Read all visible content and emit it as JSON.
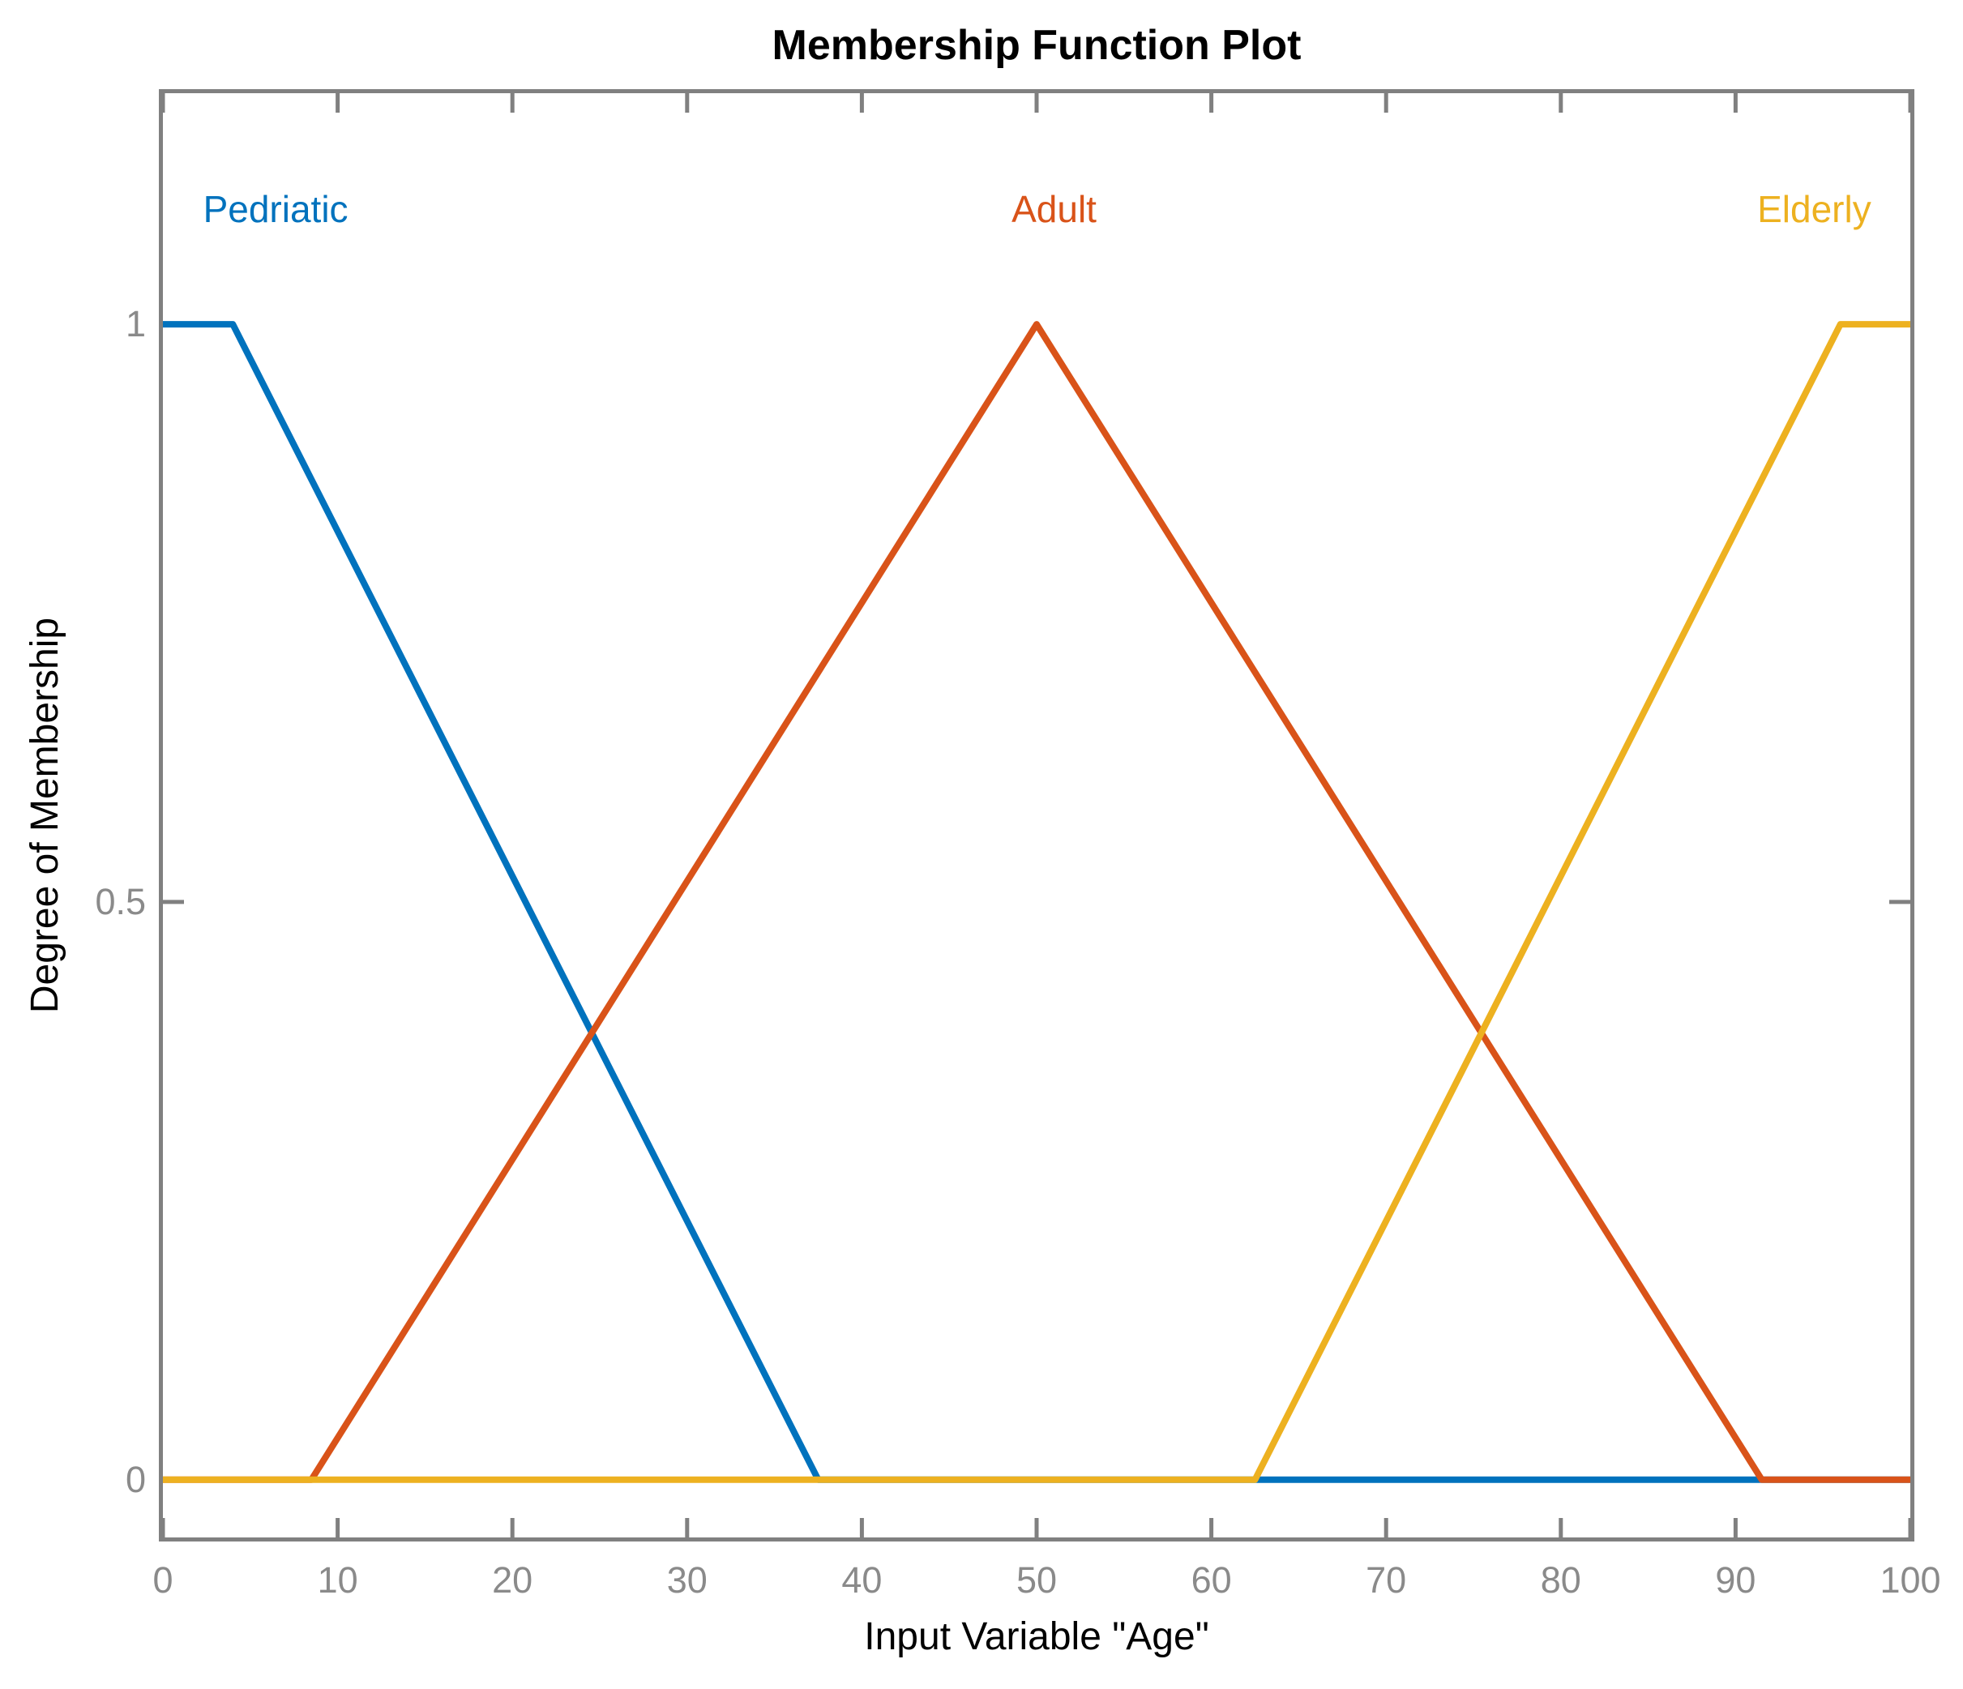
{
  "chart_data": {
    "type": "line",
    "title": "Membership Function Plot",
    "xlabel": "Input Variable \"Age\"",
    "ylabel": "Degree of Membership",
    "xlim": [
      0,
      100
    ],
    "ylim": [
      -0.05,
      1.2
    ],
    "x_ticks": [
      0,
      10,
      20,
      30,
      40,
      50,
      60,
      70,
      80,
      90,
      100
    ],
    "y_ticks": [
      0,
      0.5,
      1
    ],
    "grid": false,
    "legend_position": "inline-curve-labels",
    "background_color": "#ffffff",
    "axis_color": "#808080",
    "tick_label_color": "#8a8a8a",
    "line_width": 8,
    "series": [
      {
        "name": "Pedriatic",
        "color": "#0072BD",
        "points": [
          [
            0,
            1
          ],
          [
            4,
            1
          ],
          [
            37.5,
            0
          ],
          [
            100,
            0
          ]
        ]
      },
      {
        "name": "Adult",
        "color": "#D95319",
        "points": [
          [
            0,
            0
          ],
          [
            8.5,
            0
          ],
          [
            50,
            1
          ],
          [
            91.5,
            0
          ],
          [
            100,
            0
          ]
        ]
      },
      {
        "name": "Elderly",
        "color": "#EDB120",
        "points": [
          [
            0,
            0
          ],
          [
            62.5,
            0
          ],
          [
            96,
            1
          ],
          [
            100,
            1
          ]
        ]
      }
    ],
    "annotations": [
      {
        "text": "Pedriatic",
        "x": 2.3,
        "y": 1.1,
        "align": "left",
        "color": "#0072BD"
      },
      {
        "text": "Adult",
        "x": 51,
        "y": 1.1,
        "align": "center",
        "color": "#D95319"
      },
      {
        "text": "Elderly",
        "x": 94.5,
        "y": 1.1,
        "align": "center",
        "color": "#EDB120"
      }
    ]
  }
}
